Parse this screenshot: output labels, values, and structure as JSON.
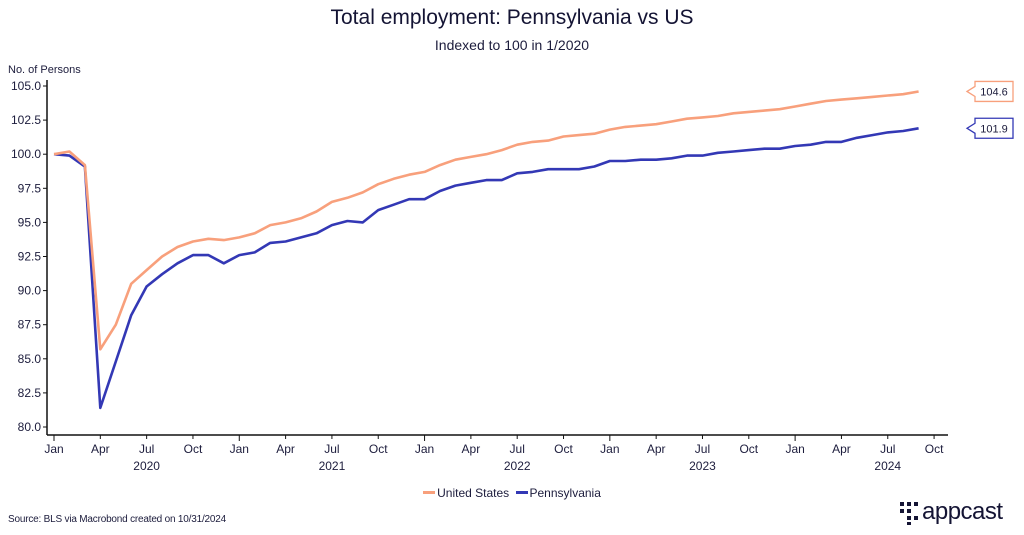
{
  "header": {
    "title": "Total employment: Pennsylvania vs US",
    "subtitle": "Indexed to 100 in 1/2020"
  },
  "footer": {
    "source": "Source: BLS via Macrobond created on 10/31/2024",
    "logo_text": "appcast"
  },
  "chart_data": {
    "type": "line",
    "title": "Total employment: Pennsylvania vs US",
    "subtitle": "Indexed to 100 in 1/2020",
    "ylabel": "No. of Persons",
    "xlabel": "",
    "ylim": [
      80,
      105
    ],
    "yticks": [
      "80.0",
      "82.5",
      "85.0",
      "87.5",
      "90.0",
      "92.5",
      "95.0",
      "97.5",
      "100.0",
      "102.5",
      "105.0"
    ],
    "x_start": "2020-01",
    "x_end_axis": "2024-10",
    "xtick_months": [
      "Jan",
      "Apr",
      "Jul",
      "Oct"
    ],
    "year_labels": [
      "2020",
      "2021",
      "2022",
      "2023",
      "2024"
    ],
    "grid": false,
    "legend_position": "bottom",
    "x": [
      "2020-01",
      "2020-02",
      "2020-03",
      "2020-04",
      "2020-05",
      "2020-06",
      "2020-07",
      "2020-08",
      "2020-09",
      "2020-10",
      "2020-11",
      "2020-12",
      "2021-01",
      "2021-02",
      "2021-03",
      "2021-04",
      "2021-05",
      "2021-06",
      "2021-07",
      "2021-08",
      "2021-09",
      "2021-10",
      "2021-11",
      "2021-12",
      "2022-01",
      "2022-02",
      "2022-03",
      "2022-04",
      "2022-05",
      "2022-06",
      "2022-07",
      "2022-08",
      "2022-09",
      "2022-10",
      "2022-11",
      "2022-12",
      "2023-01",
      "2023-02",
      "2023-03",
      "2023-04",
      "2023-05",
      "2023-06",
      "2023-07",
      "2023-08",
      "2023-09",
      "2023-10",
      "2023-11",
      "2023-12",
      "2024-01",
      "2024-02",
      "2024-03",
      "2024-04",
      "2024-05",
      "2024-06",
      "2024-07",
      "2024-08",
      "2024-09"
    ],
    "series": [
      {
        "name": "United States",
        "color": "#f8a07c",
        "end_label": "104.6",
        "values": [
          100.0,
          100.2,
          99.2,
          85.7,
          87.5,
          90.5,
          91.5,
          92.5,
          93.2,
          93.6,
          93.8,
          93.7,
          93.9,
          94.2,
          94.8,
          95.0,
          95.3,
          95.8,
          96.5,
          96.8,
          97.2,
          97.8,
          98.2,
          98.5,
          98.7,
          99.2,
          99.6,
          99.8,
          100.0,
          100.3,
          100.7,
          100.9,
          101.0,
          101.3,
          101.4,
          101.5,
          101.8,
          102.0,
          102.1,
          102.2,
          102.4,
          102.6,
          102.7,
          102.8,
          103.0,
          103.1,
          103.2,
          103.3,
          103.5,
          103.7,
          103.9,
          104.0,
          104.1,
          104.2,
          104.3,
          104.4,
          104.6
        ]
      },
      {
        "name": "Pennsylvania",
        "color": "#3338b5",
        "end_label": "101.9",
        "values": [
          100.0,
          99.9,
          99.1,
          81.4,
          84.8,
          88.2,
          90.3,
          91.2,
          92.0,
          92.6,
          92.6,
          92.0,
          92.6,
          92.8,
          93.5,
          93.6,
          93.9,
          94.2,
          94.8,
          95.1,
          95.0,
          95.9,
          96.3,
          96.7,
          96.7,
          97.3,
          97.7,
          97.9,
          98.1,
          98.1,
          98.6,
          98.7,
          98.9,
          98.9,
          98.9,
          99.1,
          99.5,
          99.5,
          99.6,
          99.6,
          99.7,
          99.9,
          99.9,
          100.1,
          100.2,
          100.3,
          100.4,
          100.4,
          100.6,
          100.7,
          100.9,
          100.9,
          101.2,
          101.4,
          101.6,
          101.7,
          101.9
        ]
      }
    ]
  }
}
